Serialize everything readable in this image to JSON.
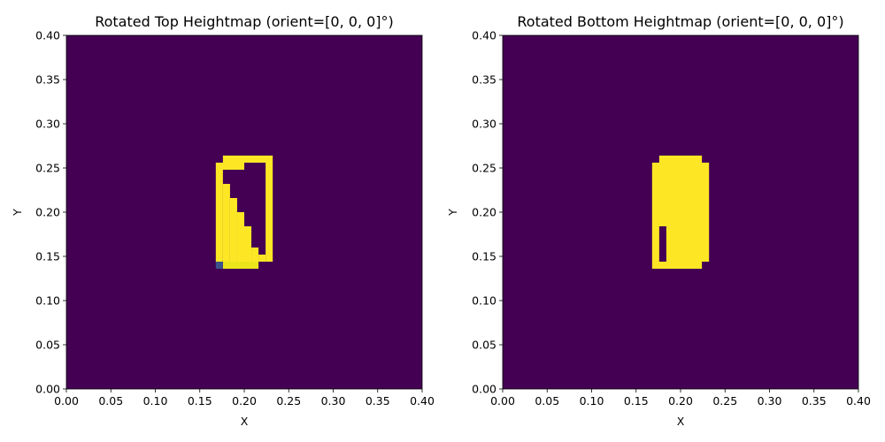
{
  "chart_data": [
    {
      "type": "heatmap",
      "title": "Rotated Top Heightmap (orient=[0, 0, 0]°)",
      "xlabel": "X",
      "ylabel": "Y",
      "xlim": [
        0,
        0.4
      ],
      "ylim": [
        0,
        0.4
      ],
      "xticks": [
        "0.00",
        "0.05",
        "0.10",
        "0.15",
        "0.20",
        "0.25",
        "0.30",
        "0.35",
        "0.40"
      ],
      "yticks": [
        "0.00",
        "0.05",
        "0.10",
        "0.15",
        "0.20",
        "0.25",
        "0.30",
        "0.35",
        "0.40"
      ],
      "background_color": "#440154",
      "cell_size": 0.008,
      "cells": [
        {
          "x": 0.176,
          "y": 0.256,
          "w": 0.056,
          "h": 0.008,
          "color": "#fde725"
        },
        {
          "x": 0.168,
          "y": 0.248,
          "w": 0.032,
          "h": 0.008,
          "color": "#fde725"
        },
        {
          "x": 0.224,
          "y": 0.144,
          "w": 0.008,
          "h": 0.112,
          "color": "#fde725"
        },
        {
          "x": 0.168,
          "y": 0.144,
          "w": 0.008,
          "h": 0.104,
          "color": "#fde725"
        },
        {
          "x": 0.176,
          "y": 0.144,
          "w": 0.008,
          "h": 0.088,
          "color": "#fde725"
        },
        {
          "x": 0.184,
          "y": 0.144,
          "w": 0.008,
          "h": 0.072,
          "color": "#fde725"
        },
        {
          "x": 0.192,
          "y": 0.144,
          "w": 0.008,
          "h": 0.056,
          "color": "#fde725"
        },
        {
          "x": 0.2,
          "y": 0.144,
          "w": 0.008,
          "h": 0.04,
          "color": "#fde725"
        },
        {
          "x": 0.208,
          "y": 0.144,
          "w": 0.008,
          "h": 0.016,
          "color": "#fde725"
        },
        {
          "x": 0.216,
          "y": 0.144,
          "w": 0.008,
          "h": 0.008,
          "color": "#fde725"
        },
        {
          "x": 0.176,
          "y": 0.136,
          "w": 0.04,
          "h": 0.008,
          "color": "#eae51a"
        },
        {
          "x": 0.168,
          "y": 0.136,
          "w": 0.008,
          "h": 0.008,
          "color": "#3b528b"
        }
      ]
    },
    {
      "type": "heatmap",
      "title": "Rotated Bottom Heightmap (orient=[0, 0, 0]°)",
      "xlabel": "X",
      "ylabel": "Y",
      "xlim": [
        0,
        0.4
      ],
      "ylim": [
        0,
        0.4
      ],
      "xticks": [
        "0.00",
        "0.05",
        "0.10",
        "0.15",
        "0.20",
        "0.25",
        "0.30",
        "0.35",
        "0.40"
      ],
      "yticks": [
        "0.00",
        "0.05",
        "0.10",
        "0.15",
        "0.20",
        "0.25",
        "0.30",
        "0.35",
        "0.40"
      ],
      "background_color": "#440154",
      "cell_size": 0.008,
      "cells": [
        {
          "x": 0.176,
          "y": 0.256,
          "w": 0.048,
          "h": 0.008,
          "color": "#fde725"
        },
        {
          "x": 0.168,
          "y": 0.144,
          "w": 0.064,
          "h": 0.112,
          "color": "#fde725"
        },
        {
          "x": 0.168,
          "y": 0.136,
          "w": 0.056,
          "h": 0.008,
          "color": "#fde725"
        },
        {
          "x": 0.176,
          "y": 0.144,
          "w": 0.008,
          "h": 0.04,
          "color": "#440154"
        }
      ]
    }
  ]
}
